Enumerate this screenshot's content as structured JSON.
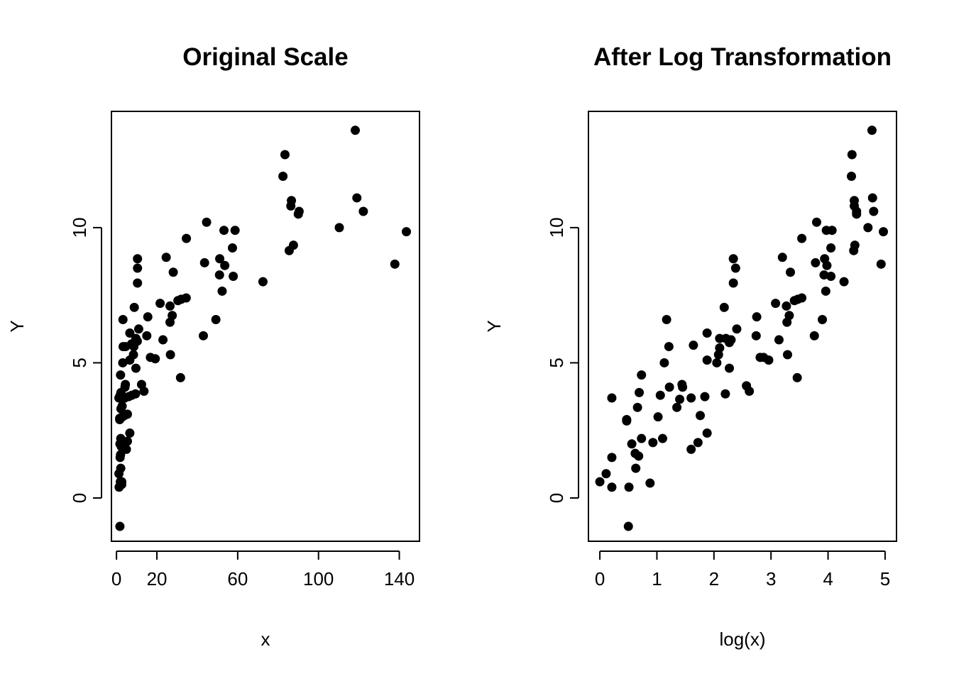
{
  "chart_data": [
    {
      "type": "scatter",
      "title": "Original Scale",
      "xlabel": "x",
      "ylabel": "Y",
      "xlim": [
        -2.5,
        150
      ],
      "ylim": [
        -1.6,
        14.3
      ],
      "x_ticks": [
        0,
        20,
        60,
        100,
        140
      ],
      "y_ticks": [
        0,
        5,
        10
      ],
      "grid": false,
      "legend": "none",
      "points": [
        {
          "x": 1.9,
          "y": 0.6
        },
        {
          "x": 1.2,
          "y": 0.9
        },
        {
          "x": 1.3,
          "y": 0.4
        },
        {
          "x": 2.6,
          "y": 0.5
        },
        {
          "x": 1.7,
          "y": -1.05
        },
        {
          "x": 2.6,
          "y": 0.6
        },
        {
          "x": 2.1,
          "y": 1.1
        },
        {
          "x": 1.8,
          "y": 1.5
        },
        {
          "x": 2.0,
          "y": 1.6
        },
        {
          "x": 2.4,
          "y": 1.9
        },
        {
          "x": 1.7,
          "y": 2.0
        },
        {
          "x": 2.1,
          "y": 2.2
        },
        {
          "x": 4.9,
          "y": 1.8
        },
        {
          "x": 5.4,
          "y": 2.1
        },
        {
          "x": 6.6,
          "y": 2.4
        },
        {
          "x": 1.6,
          "y": 2.9
        },
        {
          "x": 1.6,
          "y": 2.95
        },
        {
          "x": 2.2,
          "y": 3.3
        },
        {
          "x": 2.9,
          "y": 3.0
        },
        {
          "x": 3.9,
          "y": 3.05
        },
        {
          "x": 5.4,
          "y": 3.1
        },
        {
          "x": 1.2,
          "y": 3.7
        },
        {
          "x": 1.8,
          "y": 3.8
        },
        {
          "x": 2.2,
          "y": 3.9
        },
        {
          "x": 2.8,
          "y": 3.4
        },
        {
          "x": 3.4,
          "y": 3.7
        },
        {
          "x": 4.1,
          "y": 3.7
        },
        {
          "x": 4.2,
          "y": 4.1
        },
        {
          "x": 4.4,
          "y": 4.2
        },
        {
          "x": 6.0,
          "y": 3.75
        },
        {
          "x": 7.6,
          "y": 3.8
        },
        {
          "x": 9.4,
          "y": 3.85
        },
        {
          "x": 2.0,
          "y": 4.55
        },
        {
          "x": 3.1,
          "y": 5.0
        },
        {
          "x": 3.3,
          "y": 5.6
        },
        {
          "x": 4.5,
          "y": 5.6
        },
        {
          "x": 3.2,
          "y": 6.6
        },
        {
          "x": 6.6,
          "y": 6.1
        },
        {
          "x": 6.6,
          "y": 5.1
        },
        {
          "x": 8.4,
          "y": 5.3
        },
        {
          "x": 8.6,
          "y": 5.6
        },
        {
          "x": 7.5,
          "y": 5.7
        },
        {
          "x": 9.6,
          "y": 5.9
        },
        {
          "x": 10.3,
          "y": 5.8
        },
        {
          "x": 11.0,
          "y": 6.25
        },
        {
          "x": 9.6,
          "y": 4.8
        },
        {
          "x": 8.8,
          "y": 7.05
        },
        {
          "x": 10.4,
          "y": 7.95
        },
        {
          "x": 10.4,
          "y": 8.5
        },
        {
          "x": 10.4,
          "y": 8.85
        },
        {
          "x": 12.4,
          "y": 4.2
        },
        {
          "x": 13.6,
          "y": 3.95
        },
        {
          "x": 15.0,
          "y": 6.0
        },
        {
          "x": 15.5,
          "y": 6.7
        },
        {
          "x": 16.8,
          "y": 5.2
        },
        {
          "x": 19.2,
          "y": 5.15
        },
        {
          "x": 21.6,
          "y": 7.2
        },
        {
          "x": 23.0,
          "y": 5.85
        },
        {
          "x": 24.6,
          "y": 8.9
        },
        {
          "x": 26.5,
          "y": 7.1
        },
        {
          "x": 26.5,
          "y": 6.5
        },
        {
          "x": 27.6,
          "y": 6.75
        },
        {
          "x": 26.7,
          "y": 5.3
        },
        {
          "x": 28.1,
          "y": 8.35
        },
        {
          "x": 30.4,
          "y": 7.3
        },
        {
          "x": 32.0,
          "y": 7.35
        },
        {
          "x": 31.7,
          "y": 4.45
        },
        {
          "x": 34.5,
          "y": 7.4
        },
        {
          "x": 34.6,
          "y": 9.6
        },
        {
          "x": 43.0,
          "y": 6.0
        },
        {
          "x": 43.6,
          "y": 8.7
        },
        {
          "x": 44.6,
          "y": 10.2
        },
        {
          "x": 49.2,
          "y": 6.6
        },
        {
          "x": 51.1,
          "y": 8.85
        },
        {
          "x": 51.0,
          "y": 8.25
        },
        {
          "x": 52.3,
          "y": 7.65
        },
        {
          "x": 53.6,
          "y": 8.6
        },
        {
          "x": 53.2,
          "y": 9.9
        },
        {
          "x": 57.4,
          "y": 9.25
        },
        {
          "x": 57.8,
          "y": 8.2
        },
        {
          "x": 58.7,
          "y": 9.9
        },
        {
          "x": 72.5,
          "y": 8.0
        },
        {
          "x": 82.4,
          "y": 11.9
        },
        {
          "x": 83.4,
          "y": 12.7
        },
        {
          "x": 85.5,
          "y": 9.15
        },
        {
          "x": 86.3,
          "y": 10.8
        },
        {
          "x": 86.6,
          "y": 11.0
        },
        {
          "x": 87.6,
          "y": 9.35
        },
        {
          "x": 90.0,
          "y": 10.5
        },
        {
          "x": 90.4,
          "y": 10.6
        },
        {
          "x": 110.3,
          "y": 10.0
        },
        {
          "x": 118.2,
          "y": 13.6
        },
        {
          "x": 119.0,
          "y": 11.1
        },
        {
          "x": 122.2,
          "y": 10.6
        },
        {
          "x": 137.8,
          "y": 8.65
        },
        {
          "x": 143.5,
          "y": 9.85
        }
      ]
    },
    {
      "type": "scatter",
      "title": "After Log Transformation",
      "xlabel": "log(x)",
      "ylabel": "Y",
      "xlim": [
        -0.2,
        5.2
      ],
      "ylim": [
        -1.6,
        14.3
      ],
      "x_ticks": [
        0,
        1,
        2,
        3,
        4,
        5
      ],
      "y_ticks": [
        0,
        5,
        10
      ],
      "grid": false,
      "legend": "none",
      "points": [
        {
          "x": 0.0,
          "y": 0.6
        },
        {
          "x": 0.11,
          "y": 0.9
        },
        {
          "x": 0.21,
          "y": 0.4
        },
        {
          "x": 0.51,
          "y": 0.4
        },
        {
          "x": 0.88,
          "y": 0.55
        },
        {
          "x": 0.5,
          "y": -1.05
        },
        {
          "x": 0.21,
          "y": 1.5
        },
        {
          "x": 0.63,
          "y": 1.1
        },
        {
          "x": 0.56,
          "y": 2.0
        },
        {
          "x": 0.68,
          "y": 1.55
        },
        {
          "x": 0.62,
          "y": 1.65
        },
        {
          "x": 0.73,
          "y": 2.2
        },
        {
          "x": 0.93,
          "y": 2.05
        },
        {
          "x": 1.1,
          "y": 2.2
        },
        {
          "x": 1.6,
          "y": 1.8
        },
        {
          "x": 1.72,
          "y": 2.05
        },
        {
          "x": 1.88,
          "y": 2.4
        },
        {
          "x": 0.47,
          "y": 2.9
        },
        {
          "x": 0.47,
          "y": 2.85
        },
        {
          "x": 0.66,
          "y": 3.35
        },
        {
          "x": 1.02,
          "y": 3.0
        },
        {
          "x": 1.35,
          "y": 3.35
        },
        {
          "x": 1.76,
          "y": 3.05
        },
        {
          "x": 0.21,
          "y": 3.7
        },
        {
          "x": 0.69,
          "y": 3.9
        },
        {
          "x": 0.73,
          "y": 4.55
        },
        {
          "x": 1.06,
          "y": 3.8
        },
        {
          "x": 1.22,
          "y": 4.1
        },
        {
          "x": 1.4,
          "y": 3.65
        },
        {
          "x": 1.44,
          "y": 4.2
        },
        {
          "x": 1.45,
          "y": 4.1
        },
        {
          "x": 1.6,
          "y": 3.7
        },
        {
          "x": 1.84,
          "y": 3.75
        },
        {
          "x": 2.2,
          "y": 3.85
        },
        {
          "x": 2.57,
          "y": 4.15
        },
        {
          "x": 2.62,
          "y": 3.95
        },
        {
          "x": 1.13,
          "y": 5.0
        },
        {
          "x": 1.21,
          "y": 5.6
        },
        {
          "x": 1.17,
          "y": 6.6
        },
        {
          "x": 1.64,
          "y": 5.65
        },
        {
          "x": 1.88,
          "y": 5.1
        },
        {
          "x": 1.88,
          "y": 6.1
        },
        {
          "x": 2.05,
          "y": 5.0
        },
        {
          "x": 2.08,
          "y": 5.3
        },
        {
          "x": 2.1,
          "y": 5.55
        },
        {
          "x": 2.1,
          "y": 5.9
        },
        {
          "x": 2.21,
          "y": 5.9
        },
        {
          "x": 2.27,
          "y": 5.75
        },
        {
          "x": 2.3,
          "y": 5.85
        },
        {
          "x": 2.27,
          "y": 4.8
        },
        {
          "x": 2.18,
          "y": 7.05
        },
        {
          "x": 2.4,
          "y": 6.25
        },
        {
          "x": 2.34,
          "y": 7.95
        },
        {
          "x": 2.34,
          "y": 8.85
        },
        {
          "x": 2.38,
          "y": 8.5
        },
        {
          "x": 2.74,
          "y": 6.0
        },
        {
          "x": 2.75,
          "y": 6.7
        },
        {
          "x": 2.81,
          "y": 5.2
        },
        {
          "x": 2.87,
          "y": 5.2
        },
        {
          "x": 2.96,
          "y": 5.1
        },
        {
          "x": 3.08,
          "y": 7.2
        },
        {
          "x": 3.14,
          "y": 5.85
        },
        {
          "x": 3.2,
          "y": 8.9
        },
        {
          "x": 3.27,
          "y": 7.1
        },
        {
          "x": 3.28,
          "y": 6.5
        },
        {
          "x": 3.32,
          "y": 6.75
        },
        {
          "x": 3.29,
          "y": 5.3
        },
        {
          "x": 3.34,
          "y": 8.35
        },
        {
          "x": 3.41,
          "y": 7.3
        },
        {
          "x": 3.47,
          "y": 7.35
        },
        {
          "x": 3.46,
          "y": 4.45
        },
        {
          "x": 3.54,
          "y": 7.4
        },
        {
          "x": 3.54,
          "y": 9.6
        },
        {
          "x": 3.76,
          "y": 6.0
        },
        {
          "x": 3.78,
          "y": 8.7
        },
        {
          "x": 3.8,
          "y": 10.2
        },
        {
          "x": 3.9,
          "y": 6.6
        },
        {
          "x": 3.94,
          "y": 8.85
        },
        {
          "x": 3.93,
          "y": 8.25
        },
        {
          "x": 3.96,
          "y": 7.65
        },
        {
          "x": 3.98,
          "y": 8.6
        },
        {
          "x": 3.97,
          "y": 9.9
        },
        {
          "x": 4.05,
          "y": 9.25
        },
        {
          "x": 4.05,
          "y": 8.2
        },
        {
          "x": 4.07,
          "y": 9.9
        },
        {
          "x": 4.28,
          "y": 8.0
        },
        {
          "x": 4.41,
          "y": 11.9
        },
        {
          "x": 4.42,
          "y": 12.7
        },
        {
          "x": 4.45,
          "y": 9.15
        },
        {
          "x": 4.46,
          "y": 10.8
        },
        {
          "x": 4.46,
          "y": 11.0
        },
        {
          "x": 4.47,
          "y": 9.35
        },
        {
          "x": 4.5,
          "y": 10.5
        },
        {
          "x": 4.5,
          "y": 10.6
        },
        {
          "x": 4.7,
          "y": 10.0
        },
        {
          "x": 4.77,
          "y": 13.6
        },
        {
          "x": 4.78,
          "y": 11.1
        },
        {
          "x": 4.8,
          "y": 10.6
        },
        {
          "x": 4.93,
          "y": 8.65
        },
        {
          "x": 4.97,
          "y": 9.85
        }
      ]
    }
  ]
}
